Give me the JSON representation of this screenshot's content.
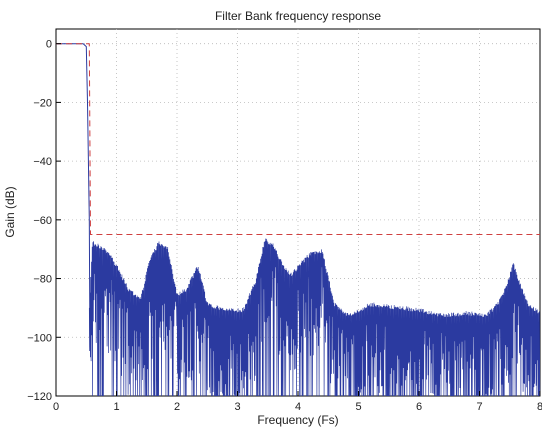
{
  "chart_data": {
    "type": "line",
    "title": "Filter Bank frequency response",
    "xlabel": "Frequency (Fs)",
    "ylabel": "Gain (dB)",
    "xlim": [
      0,
      8
    ],
    "ylim": [
      -120,
      5
    ],
    "x_ticks": [
      0,
      1,
      2,
      3,
      4,
      5,
      6,
      7,
      8
    ],
    "y_ticks": [
      0,
      -20,
      -40,
      -60,
      -80,
      -100,
      -120
    ],
    "x_tick_labels": [
      "0",
      "1",
      "2",
      "3",
      "4",
      "5",
      "6",
      "7",
      "8"
    ],
    "y_tick_labels": [
      "0",
      "−20",
      "−40",
      "−60",
      "−80",
      "−100",
      "−120"
    ],
    "grid": true,
    "series": [
      {
        "style": "solid",
        "color": "#2b3aa0",
        "x": [
          0,
          0.45,
          0.5,
          0.52,
          0.55,
          0.56
        ],
        "y": [
          0,
          0,
          -1,
          -20,
          -60,
          -100
        ]
      },
      {
        "style": "dashed",
        "color": "#d04040",
        "x": [
          0,
          0.55,
          0.57,
          8
        ],
        "y": [
          0,
          0,
          -65,
          -65
        ]
      }
    ],
    "noise_envelope": {
      "x": [
        0.55,
        0.6,
        0.7,
        0.85,
        1.0,
        1.2,
        1.4,
        1.55,
        1.7,
        1.85,
        2.0,
        2.15,
        2.35,
        2.5,
        2.8,
        3.1,
        3.3,
        3.45,
        3.6,
        3.75,
        3.9,
        4.05,
        4.2,
        4.4,
        4.6,
        4.85,
        5.2,
        5.6,
        6.0,
        6.4,
        6.8,
        7.1,
        7.3,
        7.45,
        7.55,
        7.65,
        7.8,
        8.0
      ],
      "y": [
        -90,
        -67,
        -68,
        -70,
        -75,
        -83,
        -86,
        -73,
        -67,
        -69,
        -85,
        -83,
        -75,
        -88,
        -90,
        -90,
        -80,
        -66,
        -68,
        -75,
        -78,
        -74,
        -71,
        -70,
        -88,
        -92,
        -88,
        -89,
        -90,
        -92,
        -91,
        -92,
        -88,
        -82,
        -74,
        -80,
        -88,
        -91
      ]
    },
    "noise_floor": -120
  }
}
